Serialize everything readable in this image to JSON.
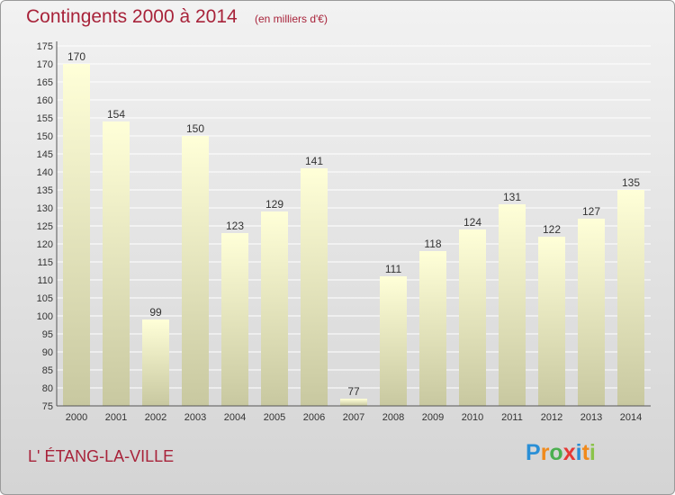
{
  "title": "Contingents 2000 à 2014",
  "subtitle": "(en milliers d'€)",
  "commune": "L' ÉTANG-LA-VILLE",
  "logo": {
    "letters": [
      "P",
      "r",
      "o",
      "x",
      "i",
      "t",
      "i"
    ],
    "colors": [
      "#2a8fd6",
      "#f08a1c",
      "#4caf50",
      "#e53935",
      "#2a8fd6",
      "#f08a1c",
      "#8bc34a"
    ]
  },
  "chart_data": {
    "type": "bar",
    "categories": [
      "2000",
      "2001",
      "2002",
      "2003",
      "2004",
      "2005",
      "2006",
      "2007",
      "2008",
      "2009",
      "2010",
      "2011",
      "2012",
      "2013",
      "2014"
    ],
    "values": [
      170,
      154,
      99,
      150,
      123,
      129,
      141,
      77,
      111,
      118,
      124,
      131,
      122,
      127,
      135
    ],
    "title": "Contingents 2000 à 2014",
    "subtitle": "(en milliers d'€)",
    "ylim": [
      75,
      175
    ],
    "yticks": [
      75,
      80,
      85,
      90,
      95,
      100,
      105,
      110,
      115,
      120,
      125,
      130,
      135,
      140,
      145,
      150,
      155,
      160,
      165,
      170,
      175
    ],
    "grid": true,
    "data_labels": true,
    "bar_color_top": "#ffffd8",
    "bar_color_bottom": "#c8c8a0"
  }
}
